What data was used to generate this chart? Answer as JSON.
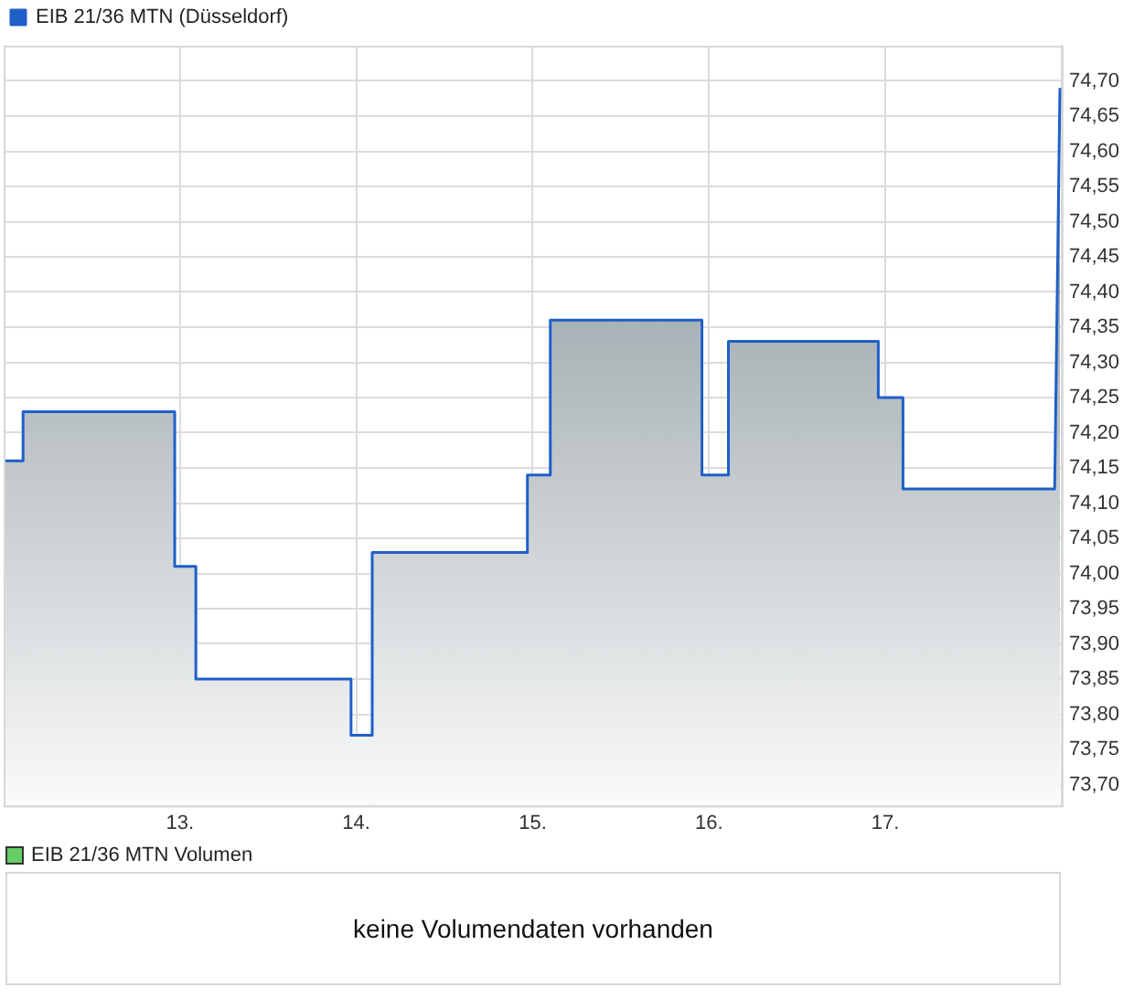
{
  "chart_data": [
    {
      "type": "area",
      "legend": "top left",
      "grid": true,
      "marker": "none",
      "x": [
        12.0,
        12.11,
        12.11,
        12.97,
        12.97,
        13.09,
        13.09,
        13.97,
        13.97,
        14.09,
        14.09,
        14.97,
        14.97,
        15.1,
        15.1,
        15.96,
        15.96,
        16.11,
        16.11,
        16.96,
        16.96,
        17.1,
        17.1,
        17.96,
        17.99
      ],
      "series": [
        {
          "name": "EIB 21/36 MTN (Düsseldorf)",
          "color": "#1f5fc8",
          "values": [
            74.16,
            74.16,
            74.23,
            74.23,
            74.01,
            74.01,
            73.85,
            73.85,
            73.77,
            73.77,
            74.03,
            74.03,
            74.14,
            74.14,
            74.36,
            74.36,
            74.14,
            74.14,
            74.33,
            74.33,
            74.25,
            74.25,
            74.12,
            74.12,
            74.69
          ]
        }
      ],
      "xlim": [
        12,
        18
      ],
      "xticks": [
        {
          "value": 13,
          "label": "13."
        },
        {
          "value": 14,
          "label": "14."
        },
        {
          "value": 15,
          "label": "15."
        },
        {
          "value": 16,
          "label": "16."
        },
        {
          "value": 17,
          "label": "17."
        }
      ],
      "ylim": [
        73.67,
        74.75
      ],
      "yticks": [
        {
          "value": 73.7,
          "label": "73,70"
        },
        {
          "value": 73.75,
          "label": "73,75"
        },
        {
          "value": 73.8,
          "label": "73,80"
        },
        {
          "value": 73.85,
          "label": "73,85"
        },
        {
          "value": 73.9,
          "label": "73,90"
        },
        {
          "value": 73.95,
          "label": "73,95"
        },
        {
          "value": 74.0,
          "label": "74,00"
        },
        {
          "value": 74.05,
          "label": "74,05"
        },
        {
          "value": 74.1,
          "label": "74,10"
        },
        {
          "value": 74.15,
          "label": "74,15"
        },
        {
          "value": 74.2,
          "label": "74,20"
        },
        {
          "value": 74.25,
          "label": "74,25"
        },
        {
          "value": 74.3,
          "label": "74,30"
        },
        {
          "value": 74.35,
          "label": "74,35"
        },
        {
          "value": 74.4,
          "label": "74,40"
        },
        {
          "value": 74.45,
          "label": "74,45"
        },
        {
          "value": 74.5,
          "label": "74,50"
        },
        {
          "value": 74.55,
          "label": "74,55"
        },
        {
          "value": 74.6,
          "label": "74,60"
        },
        {
          "value": 74.65,
          "label": "74,65"
        },
        {
          "value": 74.7,
          "label": "74,70"
        }
      ]
    },
    {
      "type": "other",
      "legend": "top left",
      "series": [
        {
          "name": "EIB 21/36 MTN Volumen",
          "color": "#66cc66"
        }
      ],
      "annotations": [
        "keine Volumendaten vorhanden"
      ]
    }
  ]
}
